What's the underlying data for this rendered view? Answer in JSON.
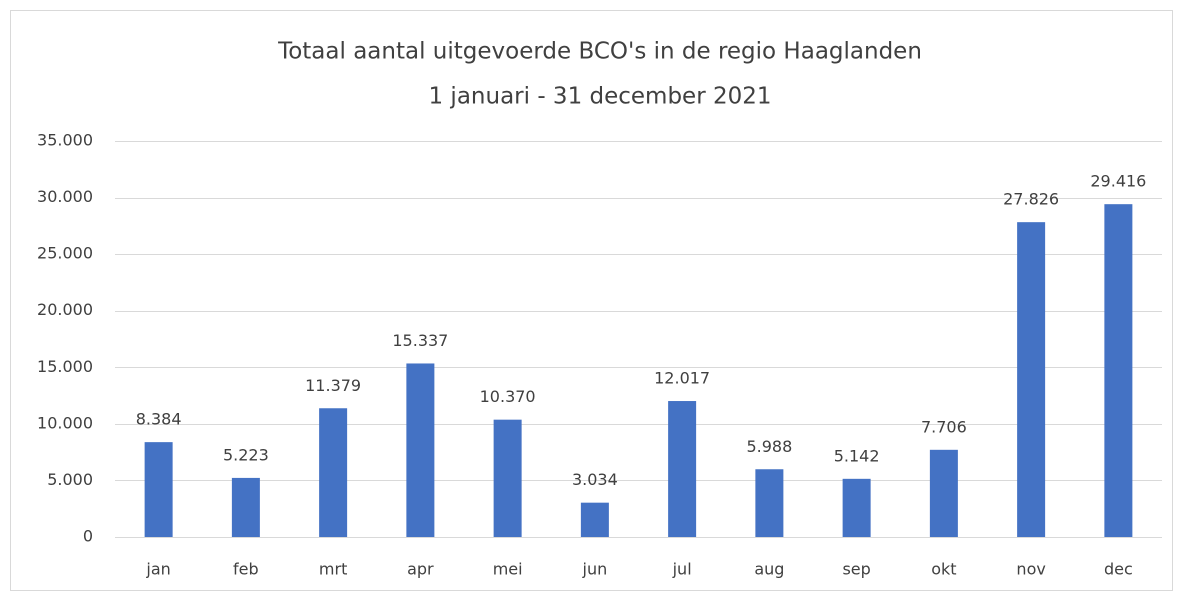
{
  "chart_data": {
    "type": "bar",
    "title": "Totaal aantal uitgevoerde BCO's in de regio Haaglanden",
    "subtitle": "1 januari - 31 december 2021",
    "categories": [
      "jan",
      "feb",
      "mrt",
      "apr",
      "mei",
      "jun",
      "jul",
      "aug",
      "sep",
      "okt",
      "nov",
      "dec"
    ],
    "values": [
      8384,
      5223,
      11379,
      15337,
      10370,
      3034,
      12017,
      5988,
      5142,
      7706,
      27826,
      29416
    ],
    "value_labels": [
      "8.384",
      "5.223",
      "11.379",
      "15.337",
      "10.370",
      "3.034",
      "12.017",
      "5.988",
      "5.142",
      "7.706",
      "27.826",
      "29.416"
    ],
    "color": "#4472c4",
    "ylim": [
      0,
      35000
    ],
    "yticks": [
      0,
      {
        "value": 5000,
        "label": "5.000"
      },
      {
        "value": 10000,
        "label": "10.000"
      },
      {
        "value": 15000,
        "label": "15.000"
      },
      {
        "value": 20000,
        "label": "20.000"
      },
      {
        "value": 25000,
        "label": "25.000"
      },
      {
        "value": 30000,
        "label": "30.000"
      },
      {
        "value": 35000,
        "label": "35.000"
      }
    ],
    "grid": true
  }
}
